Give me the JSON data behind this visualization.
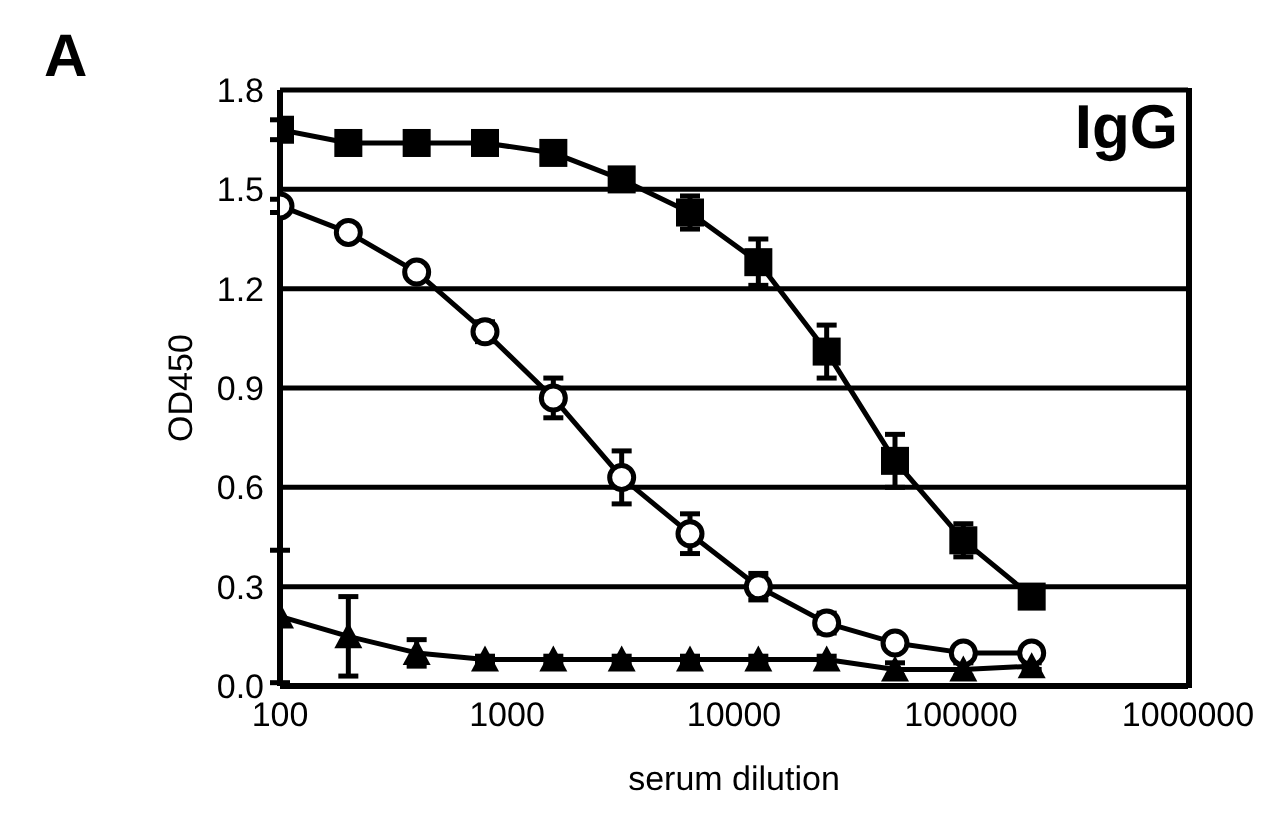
{
  "chart_data": {
    "type": "line",
    "xlabel": "serum dilution",
    "ylabel": "OD450",
    "annotations": [
      "A",
      "IgG"
    ],
    "x": [
      100,
      200,
      400,
      800,
      1600,
      3200,
      6400,
      12800,
      25600,
      51200,
      102400,
      204800
    ],
    "series": [
      {
        "color": "#000000",
        "marker": "square",
        "values": [
          1.68,
          1.64,
          1.64,
          1.64,
          1.61,
          1.53,
          1.43,
          1.28,
          1.01,
          0.68,
          0.44,
          0.27
        ],
        "errors": [
          0.03,
          0.02,
          0.02,
          0.02,
          0.02,
          0.03,
          0.05,
          0.07,
          0.08,
          0.08,
          0.05,
          0.03
        ]
      },
      {
        "color": "#000000",
        "marker": "circle",
        "values": [
          1.45,
          1.37,
          1.25,
          1.07,
          0.87,
          0.63,
          0.46,
          0.3,
          0.19,
          0.13,
          0.1,
          0.1
        ],
        "errors": [
          0.02,
          0.02,
          0.02,
          0.03,
          0.06,
          0.08,
          0.06,
          0.04,
          0.03,
          0.02,
          0.02,
          0.02
        ]
      },
      {
        "color": "#000000",
        "marker": "triangle",
        "values": [
          0.21,
          0.15,
          0.1,
          0.08,
          0.08,
          0.08,
          0.08,
          0.08,
          0.08,
          0.05,
          0.05,
          0.06
        ],
        "errors": [
          0.2,
          0.12,
          0.04,
          0.01,
          0.01,
          0.01,
          0.01,
          0.01,
          0.01,
          0.02,
          0.02,
          0.01
        ]
      }
    ],
    "log": "x",
    "xlim": [
      100,
      1000000
    ],
    "xticks": [
      100,
      1000,
      10000,
      100000,
      1000000
    ],
    "ylim": [
      0,
      1.8
    ],
    "yticks": [
      {
        "value": 0,
        "label": "0.0"
      },
      0.3,
      0.6,
      0.9,
      1.2,
      1.5,
      1.8
    ],
    "grid": "y"
  }
}
